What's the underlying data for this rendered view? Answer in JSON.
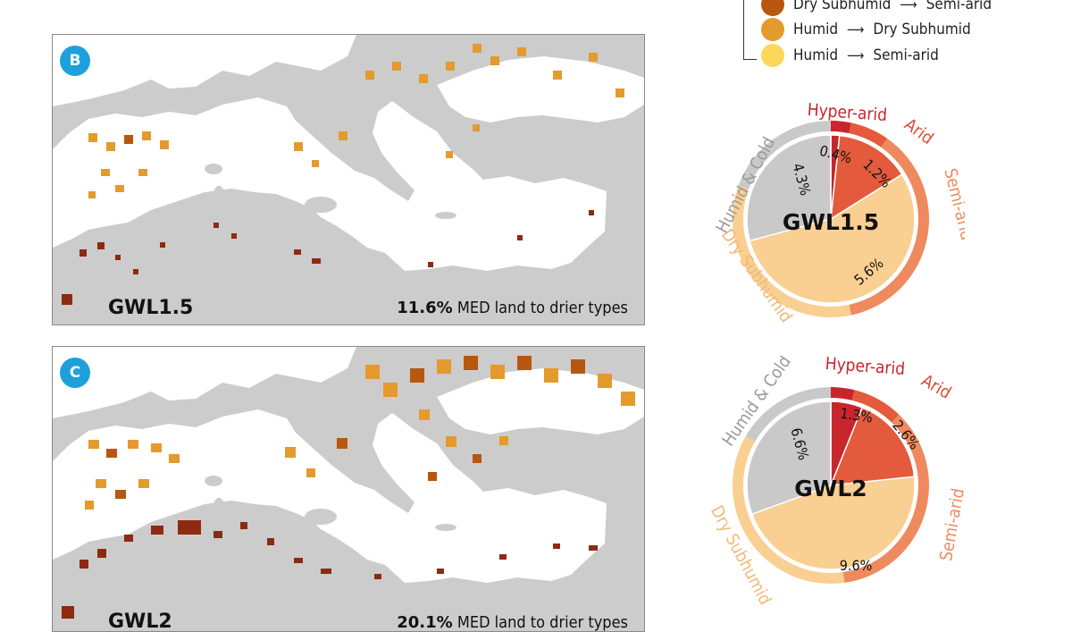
{
  "legend": {
    "items": [
      {
        "from": "Dry Subhumid",
        "to": "Semi-arid",
        "color": "#b8570f"
      },
      {
        "from": "Humid",
        "to": "Dry Subhumid",
        "color": "#e49a2c"
      },
      {
        "from": "Humid",
        "to": "Semi-arid",
        "color": "#fbd75b"
      }
    ]
  },
  "panels": [
    {
      "badge": "B",
      "scenario": "GWL1.5",
      "percent": "11.6%",
      "caption": "MED land to drier types"
    },
    {
      "badge": "C",
      "scenario": "GWL2",
      "percent": "20.1%",
      "caption": "MED land to drier types"
    }
  ],
  "donuts": [
    {
      "center_label": "GWL1.5",
      "outer_labels": {
        "humid_cold": "Humid & Cold",
        "hyper_arid": "Hyper-arid",
        "arid": "Arid",
        "semi_arid": "Semi-arid",
        "dry_subhumid": "Dry Subhumid"
      },
      "inner_labels": {
        "humid_cold": "4.3%",
        "hyper_arid": "0.4%",
        "arid": "1.2%",
        "dry_subhumid": "5.6%"
      }
    },
    {
      "center_label": "GWL2",
      "outer_labels": {
        "humid_cold": "Humid & Cold",
        "hyper_arid": "Hyper-arid",
        "arid": "Arid",
        "semi_arid": "Semi-arid",
        "dry_subhumid": "Dry Subhumid"
      },
      "inner_labels": {
        "humid_cold": "6.6%",
        "hyper_arid": "1.3%",
        "arid": "2.6%",
        "dry_subhumid": "9.6%"
      }
    }
  ],
  "colors": {
    "hyper_arid": "#c8262c",
    "arid": "#e35a3c",
    "semi_arid": "#ee8a5e",
    "dry_subhumid": "#f9cf92",
    "humid_cold": "#c9c9c9",
    "land": "#cccccc",
    "sea": "#ffffff",
    "ds_to_sa": "#b8570f",
    "h_to_ds": "#e49a2c",
    "h_to_sa": "#fbd75b",
    "dry_hot": "#8e2a12"
  }
}
